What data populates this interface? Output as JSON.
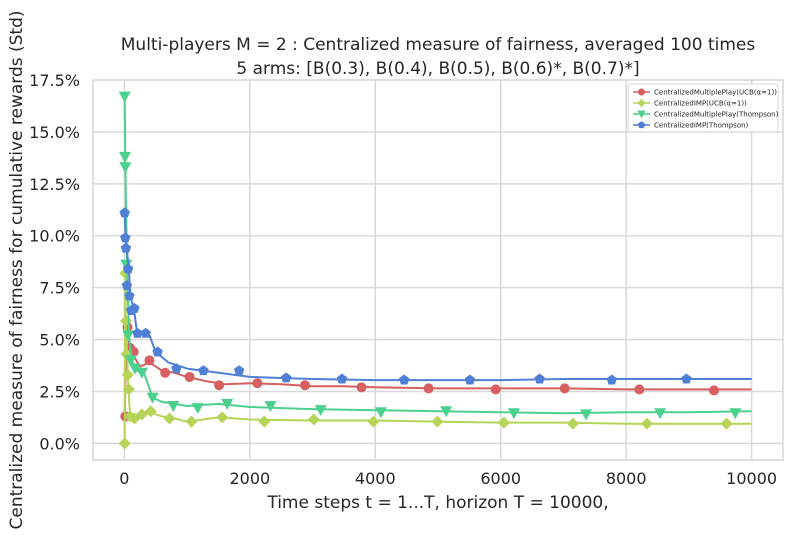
{
  "chart_data": {
    "type": "line",
    "title": "Multi-players M = 2 : Centralized measure of fairness, averaged 100 times",
    "subtitle": "5 arms: [B(0.3), B(0.4), B(0.5), B(0.6)*, B(0.7)*]",
    "xlabel": "Time steps t = 1...T, horizon T = 10000,",
    "ylabel": "Centralized measure of fairness for cumulative rewards (Std)",
    "xlim": [
      -500,
      10500
    ],
    "ylim": [
      -0.8,
      17.5
    ],
    "xticks": [
      0,
      2000,
      4000,
      6000,
      8000,
      10000
    ],
    "xtick_labels": [
      "0",
      "2000",
      "4000",
      "6000",
      "8000",
      "10000"
    ],
    "yticks": [
      0,
      2.5,
      5,
      7.5,
      10,
      12.5,
      15,
      17.5
    ],
    "ytick_labels": [
      "0.0%",
      "2.5%",
      "5.0%",
      "7.5%",
      "10.0%",
      "12.5%",
      "15.0%",
      "17.5%"
    ],
    "grid": true,
    "legend_position": "top-right",
    "series": [
      {
        "name": "CentralizedMultiplePlay(UCB(α=1))",
        "color": "#d65f5f",
        "marker": "circle",
        "points": [
          [
            5,
            1.3
          ],
          [
            20,
            3.5
          ],
          [
            40,
            5.5
          ],
          [
            60,
            5.0
          ],
          [
            100,
            4.6
          ],
          [
            150,
            4.2
          ],
          [
            250,
            3.7
          ],
          [
            400,
            3.9
          ],
          [
            600,
            3.5
          ],
          [
            800,
            3.4
          ],
          [
            1000,
            3.2
          ],
          [
            1300,
            3.0
          ],
          [
            1600,
            2.85
          ],
          [
            2000,
            2.9
          ],
          [
            2500,
            2.85
          ],
          [
            3000,
            2.75
          ],
          [
            3500,
            2.75
          ],
          [
            4000,
            2.7
          ],
          [
            5000,
            2.65
          ],
          [
            6000,
            2.65
          ],
          [
            7000,
            2.65
          ],
          [
            8000,
            2.6
          ],
          [
            9000,
            2.6
          ],
          [
            10000,
            2.6
          ]
        ],
        "markers": [
          [
            15,
            1.3
          ],
          [
            50,
            5.6
          ],
          [
            90,
            4.6
          ],
          [
            150,
            4.4
          ],
          [
            400,
            4.0
          ],
          [
            650,
            3.4
          ],
          [
            1040,
            3.2
          ],
          [
            1510,
            2.8
          ],
          [
            2120,
            2.9
          ],
          [
            2880,
            2.8
          ],
          [
            3780,
            2.7
          ],
          [
            4850,
            2.65
          ],
          [
            5920,
            2.6
          ],
          [
            7020,
            2.65
          ],
          [
            8210,
            2.6
          ],
          [
            9400,
            2.55
          ]
        ]
      },
      {
        "name": "CentralizedIMP(UCB(α=1))",
        "color": "#b5d458",
        "marker": "diamond",
        "points": [
          [
            5,
            0.0
          ],
          [
            15,
            8.2
          ],
          [
            25,
            5.8
          ],
          [
            40,
            4.5
          ],
          [
            60,
            3.0
          ],
          [
            80,
            1.8
          ],
          [
            100,
            1.3
          ],
          [
            150,
            1.4
          ],
          [
            250,
            1.3
          ],
          [
            400,
            1.5
          ],
          [
            600,
            1.3
          ],
          [
            800,
            1.2
          ],
          [
            1000,
            1.05
          ],
          [
            1500,
            1.25
          ],
          [
            2000,
            1.15
          ],
          [
            3000,
            1.1
          ],
          [
            4000,
            1.1
          ],
          [
            5000,
            1.05
          ],
          [
            6000,
            1.0
          ],
          [
            7000,
            1.0
          ],
          [
            8000,
            0.95
          ],
          [
            9000,
            0.95
          ],
          [
            10000,
            0.95
          ]
        ],
        "markers": [
          [
            5,
            0.0
          ],
          [
            15,
            8.2
          ],
          [
            25,
            5.9
          ],
          [
            35,
            4.3
          ],
          [
            55,
            3.3
          ],
          [
            70,
            2.6
          ],
          [
            90,
            1.3
          ],
          [
            160,
            1.2
          ],
          [
            280,
            1.4
          ],
          [
            420,
            1.55
          ],
          [
            720,
            1.2
          ],
          [
            1070,
            1.05
          ],
          [
            1560,
            1.25
          ],
          [
            2230,
            1.05
          ],
          [
            3020,
            1.15
          ],
          [
            3970,
            1.05
          ],
          [
            4990,
            1.05
          ],
          [
            6050,
            1.0
          ],
          [
            7150,
            0.95
          ],
          [
            8330,
            0.95
          ],
          [
            9600,
            0.95
          ]
        ]
      },
      {
        "name": "CentralizedMultiplePlay(Thompson)",
        "color": "#4cd08e",
        "marker": "triangle-down",
        "points": [
          [
            5,
            16.7
          ],
          [
            15,
            13.5
          ],
          [
            30,
            11.0
          ],
          [
            50,
            7.5
          ],
          [
            80,
            5.0
          ],
          [
            120,
            4.0
          ],
          [
            200,
            3.5
          ],
          [
            300,
            3.5
          ],
          [
            450,
            2.2
          ],
          [
            600,
            2.0
          ],
          [
            800,
            1.9
          ],
          [
            1000,
            1.8
          ],
          [
            1500,
            1.9
          ],
          [
            2000,
            1.75
          ],
          [
            2500,
            1.7
          ],
          [
            3000,
            1.65
          ],
          [
            4000,
            1.6
          ],
          [
            5000,
            1.55
          ],
          [
            6000,
            1.5
          ],
          [
            7000,
            1.45
          ],
          [
            8000,
            1.5
          ],
          [
            9000,
            1.5
          ],
          [
            10000,
            1.55
          ]
        ],
        "markers": [
          [
            5,
            16.7
          ],
          [
            10,
            13.8
          ],
          [
            15,
            13.3
          ],
          [
            30,
            8.6
          ],
          [
            60,
            5.2
          ],
          [
            100,
            4.0
          ],
          [
            170,
            3.6
          ],
          [
            280,
            3.4
          ],
          [
            450,
            2.2
          ],
          [
            780,
            1.8
          ],
          [
            1170,
            1.7
          ],
          [
            1640,
            1.9
          ],
          [
            2330,
            1.8
          ],
          [
            3130,
            1.6
          ],
          [
            4090,
            1.5
          ],
          [
            5130,
            1.55
          ],
          [
            6210,
            1.45
          ],
          [
            7360,
            1.4
          ],
          [
            8540,
            1.45
          ],
          [
            9740,
            1.45
          ]
        ]
      },
      {
        "name": "CentralizedIMP(Thompson)",
        "color": "#4f7fd6",
        "marker": "pentagon",
        "points": [
          [
            5,
            11.1
          ],
          [
            20,
            10.0
          ],
          [
            40,
            9.3
          ],
          [
            70,
            8.4
          ],
          [
            100,
            7.0
          ],
          [
            150,
            6.5
          ],
          [
            200,
            5.4
          ],
          [
            300,
            5.3
          ],
          [
            400,
            5.2
          ],
          [
            500,
            4.4
          ],
          [
            700,
            3.9
          ],
          [
            1000,
            3.6
          ],
          [
            1500,
            3.4
          ],
          [
            2000,
            3.2
          ],
          [
            2500,
            3.15
          ],
          [
            3000,
            3.1
          ],
          [
            4000,
            3.05
          ],
          [
            5000,
            3.05
          ],
          [
            6000,
            3.05
          ],
          [
            7000,
            3.1
          ],
          [
            8000,
            3.1
          ],
          [
            9000,
            3.1
          ],
          [
            10000,
            3.1
          ]
        ],
        "markers": [
          [
            5,
            11.1
          ],
          [
            15,
            9.9
          ],
          [
            25,
            9.4
          ],
          [
            40,
            7.6
          ],
          [
            60,
            8.4
          ],
          [
            80,
            7.1
          ],
          [
            110,
            6.4
          ],
          [
            160,
            6.5
          ],
          [
            210,
            5.3
          ],
          [
            340,
            5.3
          ],
          [
            530,
            4.4
          ],
          [
            830,
            3.6
          ],
          [
            1260,
            3.5
          ],
          [
            1830,
            3.5
          ],
          [
            2580,
            3.15
          ],
          [
            3470,
            3.1
          ],
          [
            4460,
            3.05
          ],
          [
            5510,
            3.05
          ],
          [
            6620,
            3.1
          ],
          [
            7770,
            3.05
          ],
          [
            8960,
            3.1
          ]
        ]
      }
    ]
  }
}
